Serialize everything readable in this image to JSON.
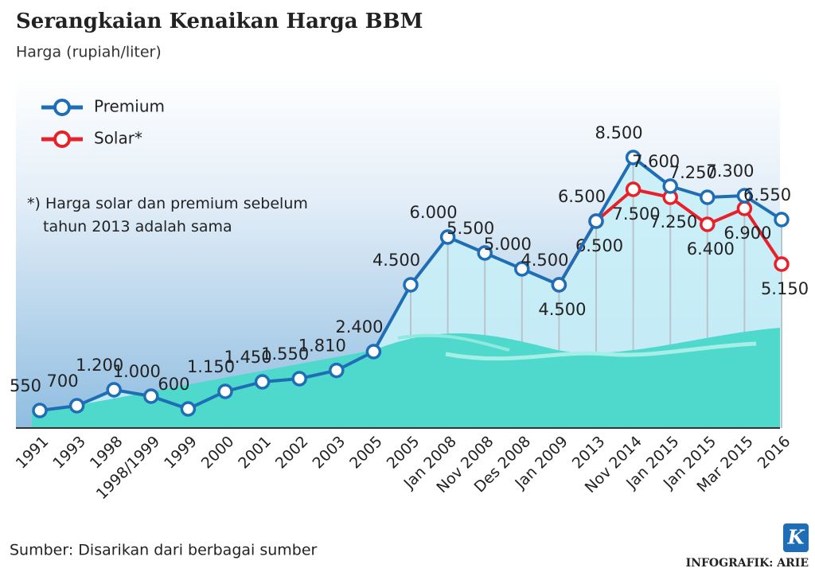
{
  "chart_data": {
    "type": "line",
    "title": "Serangkaian  Kenaikan Harga BBM",
    "subtitle": "Harga (rupiah/liter)",
    "note": "*) Harga solar dan premium sebelum tahun 2013 adalah sama",
    "source": "Sumber: Disarikan dari berbagai sumber",
    "credit": "INFOGRAFIK: ARIE",
    "logo": "K",
    "categories": [
      "1991",
      "1993",
      "1998",
      "1998/1999",
      "1999",
      "2000",
      "2001",
      "2002",
      "2003",
      "2005",
      "2005",
      "Jan 2008",
      "Nov 2008",
      "Des 2008",
      "Jan 2009",
      "2013",
      "Nov 2014",
      "Jan 2015",
      "Jan 2015",
      "Mar 2015",
      "2016"
    ],
    "series": [
      {
        "name": "Solar*",
        "color": "#e8202a",
        "values": [
          null,
          null,
          null,
          null,
          null,
          null,
          null,
          null,
          null,
          null,
          null,
          null,
          null,
          null,
          4500,
          6500,
          7500,
          7250,
          6400,
          6900,
          5150
        ],
        "value_labels": [
          null,
          null,
          null,
          null,
          null,
          null,
          null,
          null,
          null,
          null,
          null,
          null,
          null,
          null,
          "4.500",
          "6.500",
          "7.500",
          "7.250",
          "6.400",
          "6.900",
          "5.150"
        ]
      },
      {
        "name": "Premium",
        "color": "#1f6db5",
        "values": [
          550,
          700,
          1200,
          1000,
          600,
          1150,
          1450,
          1550,
          1810,
          2400,
          4500,
          6000,
          5500,
          5000,
          4500,
          6500,
          8500,
          7600,
          7250,
          7300,
          6550
        ],
        "value_labels": [
          "550",
          "700",
          "1.200",
          "1.000",
          "600",
          "1.150",
          "1.450",
          "1.550",
          "1.810",
          "2.400",
          "4.500",
          "6.000",
          "5.500",
          "5.000",
          "4.500",
          "6.500",
          "8.500",
          "7.600",
          "7.250",
          "7.300",
          "6.550"
        ]
      }
    ],
    "ylim": [
      0,
      9000
    ]
  }
}
